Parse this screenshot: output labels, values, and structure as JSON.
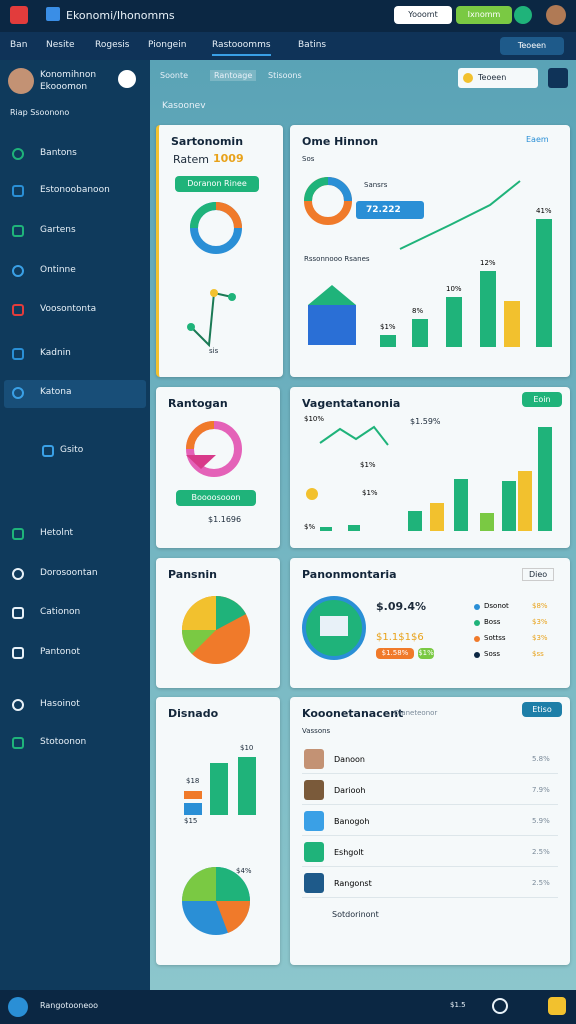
{
  "header": {
    "title": "Ekonomi/Ihonomms",
    "buttons": [
      "Yooomt",
      "Ixnomm"
    ]
  },
  "nav": {
    "items": [
      "Ban",
      "Nesite",
      "Rogesis",
      "Piongein",
      "Rastooomms",
      "Batins"
    ],
    "action": "Teoeen"
  },
  "sidebar": {
    "user": {
      "name": "Konomihnon",
      "role": "Ekooomon"
    },
    "section": "Riap Ssoonono",
    "items": [
      "Bantons",
      "Estonoobanoon",
      "Gartens",
      "Ontinne",
      "Voosontonta",
      "Kadnin",
      "Katona",
      "Gsito",
      "Hetolnt",
      "Dorosoontan",
      "Cationon",
      "Pantonot",
      "Hasoinot",
      "Stotoonon"
    ]
  },
  "tabs": [
    "Soonte",
    "Rantoage",
    "Stisoons"
  ],
  "section_title": "Kasoonev",
  "cards": [
    {
      "title": "Sartonomin",
      "subtitle": "Ratem",
      "highlight": "1009",
      "button": "Doranon Rinee",
      "label": "sis"
    },
    {
      "title": "Ome Hinnon",
      "dropdown": "Eaem",
      "label": "Sos",
      "legend": "Sansrs",
      "value": "72.222",
      "caption": "Rssonnooo Rsanes",
      "bar_labels": [
        "$1%",
        "8%",
        "10%",
        "12%",
        "41%"
      ]
    },
    {
      "title": "Rantogan",
      "button": "Boooosooon",
      "value": "$1.1696"
    },
    {
      "title": "Vagentatanonia",
      "button": "Eoin",
      "value": "$1.59%",
      "labels": [
        "$10%",
        "$1%",
        "$1%",
        "$%"
      ]
    },
    {
      "title": "Pansnin"
    },
    {
      "title": "Panonmontaria",
      "dropdown": "Dieo",
      "value": "$.09.4%",
      "sub": "$1.1$1$6",
      "tags": [
        "$1.58%",
        "$1%"
      ],
      "legend": [
        {
          "name": "Dsonot",
          "value": "$8%"
        },
        {
          "name": "Boss",
          "value": "$3%"
        },
        {
          "name": "Sottss",
          "value": "$3%"
        },
        {
          "name": "Soss",
          "value": "$ss"
        }
      ]
    },
    {
      "title": "Disnado",
      "labels": [
        "$18",
        "$10",
        "$15",
        "$4%"
      ]
    },
    {
      "title": "Kooonetanacent",
      "subtitle": "Dianeteonor",
      "dropdown": "Etiso",
      "caption": "Vassons",
      "rows": [
        {
          "name": "Danoon",
          "value": "5.8%"
        },
        {
          "name": "Dariooh",
          "value": "7.9%"
        },
        {
          "name": "Banogoh",
          "value": "5.9%"
        },
        {
          "name": "Eshgolt",
          "value": "2.5%"
        },
        {
          "name": "Rangonst",
          "value": "2.5%"
        }
      ],
      "footer": "Sotdorinont"
    }
  ],
  "footer": {
    "text": "Rangotooneoo",
    "badge": "$1.5"
  }
}
